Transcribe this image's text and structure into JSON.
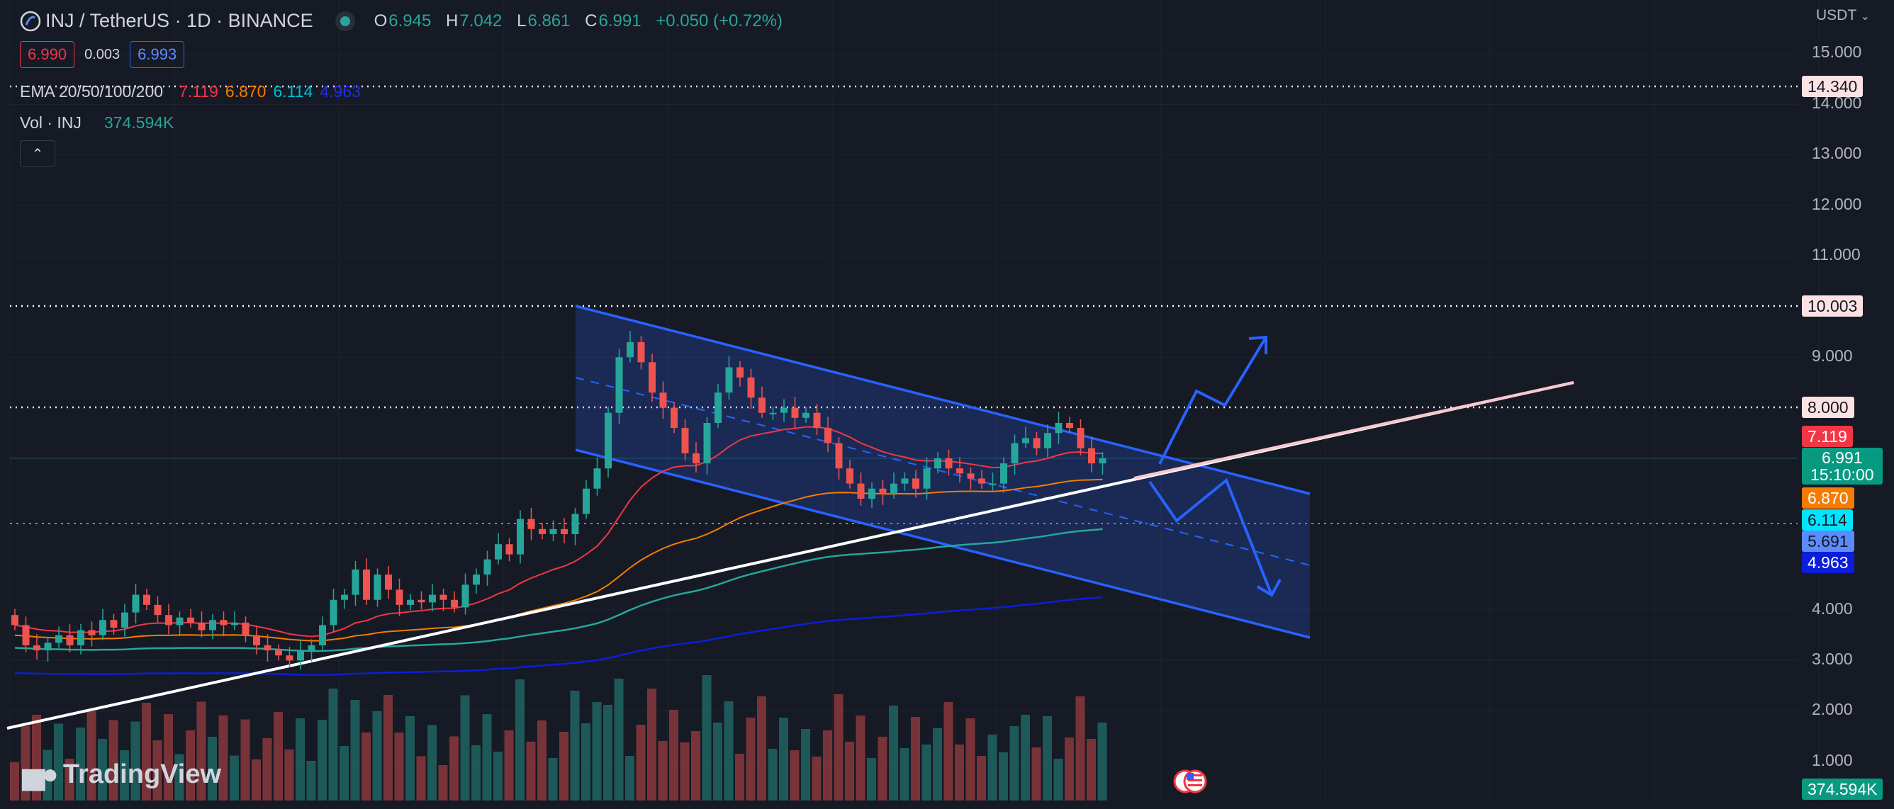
{
  "header": {
    "symbol": "INJ / TetherUS · 1D · BINANCE",
    "ohlc": {
      "o_label": "O",
      "o": "6.945",
      "h_label": "H",
      "h": "7.042",
      "l_label": "L",
      "l": "6.861",
      "c_label": "C",
      "c": "6.991",
      "change": "+0.050 (+0.72%)"
    },
    "sell_price": "6.990",
    "spread": "0.003",
    "buy_price": "6.993"
  },
  "indicators": {
    "ema_label": "EMA 20/50/100/200",
    "ema_values": [
      "7.119",
      "6.870",
      "6.114",
      "4.963"
    ],
    "vol_label": "Vol · INJ",
    "vol_value": "374.594K",
    "collapse_icon": "chevron-up-icon"
  },
  "price_axis": {
    "currency": "USDT",
    "ticks": [
      "15.000",
      "14.000",
      "13.000",
      "12.000",
      "11.000",
      "9.000",
      "4.000",
      "3.000",
      "2.000",
      "1.000"
    ],
    "labels": {
      "level_top": "14.340",
      "level_10": "10.003",
      "level_8": "8.000",
      "ema20": "7.119",
      "last_price": "6.991",
      "countdown": "15:10:00",
      "ema50": "6.870",
      "ema100": "6.114",
      "level_dotted_blue": "5.691",
      "ema200": "4.963",
      "volume": "374.594K"
    }
  },
  "colors": {
    "background": "#161a25",
    "up": "#26a69a",
    "down": "#ef5350",
    "ema20": "#f23645",
    "ema50": "#f57c00",
    "ema100": "#00bcd4",
    "ema200": "#0d1ed8",
    "drawing_blue": "#2962ff"
  },
  "branding": {
    "name": "TradingView"
  }
}
